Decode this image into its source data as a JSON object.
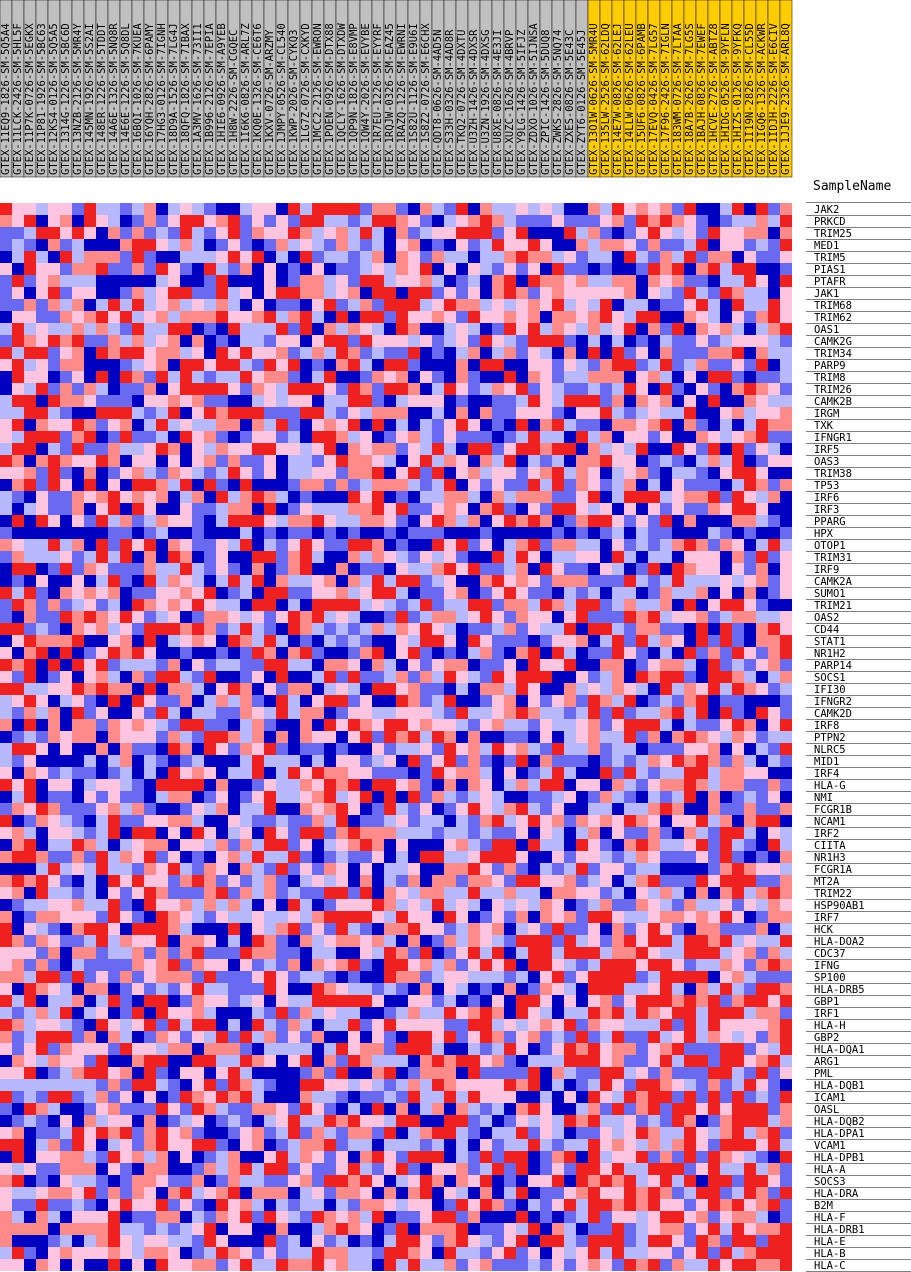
{
  "chart_data": {
    "type": "heatmap",
    "title": "",
    "xlabel": "",
    "ylabel": "",
    "header_label": "SampleName",
    "colors": {
      "group_a_header": "#c0c0c0",
      "group_b_header": "#ffcc00",
      "scale": [
        "#0000c0",
        "#6a6af0",
        "#b8b8ff",
        "#ffc4e0",
        "#ff8a8a",
        "#ee2020"
      ]
    },
    "samples": [
      "GTEX-11EQ9-1826-SM-5Q5A4",
      "GTEX-11LCK-2426-SM-5HL5F",
      "GTEX-11P7K-0726-SM-5EGKX",
      "GTEX-11P81-1926-SM-5BC63",
      "GTEX-12KS4-0126-SM-5Q5A5",
      "GTEX-1314G-1226-SM-5BC6D",
      "GTEX-13NZB-2126-SM-5MR4Y",
      "GTEX-145MN-1926-SM-5S2AI",
      "GTEX-148ER-1226-SM-5TDDT",
      "GTEX-14A6E-1326-SM-5NQ8R",
      "GTEX-14E6E-1226-SM-5Q8DL",
      "GTEX-16BQI-1026-SM-7KUEA",
      "GTEX-16YQH-2826-SM-6PAMY",
      "GTEX-17HG3-0126-SM-7IGNH",
      "GTEX-18D9A-1526-SM-7LG4J",
      "GTEX-18QFQ-1826-SM-7IBAX",
      "GTEX-1A3MV-1626-SM-73II1",
      "GTEX-1B996-2126-SM-7EPIA",
      "GTEX-1HIE6-0926-SM-A9YEB",
      "GTEX-1H8W-2226-SM-CGQEC",
      "GTEX-1I6K6-0826-SM-ARL7Z",
      "GTEX-1KQ0E-1326-SM-CE6T6",
      "GTEX-1KXV-0726-SM-ARZMY",
      "GTEX-1JMPY-0526-SM-CL540",
      "GTEX-1KWP-2026-SM-CYKQ3",
      "GTEX-1LG7Z-0726-SM-CXKYD",
      "GTEX-1MCC2-2126-SM-EWRON",
      "GTEX-1POEN-0926-SM-DTX88",
      "GTEX-1QCLY-1626-SM-DTXDW",
      "GTEX-1QP9N-1826-SM-E8VMP",
      "GTEX-1QW4Y-2026-SM-EVYBE",
      "GTEX-1R7EU-1226-SM-EYYRF",
      "GTEX-1RQJW-0326-SM-EAZ45",
      "GTEX-1RAZQ-1226-SM-EWRNI",
      "GTEX-1S82U-1126-SM-E9U6I",
      "GTEX-1S8Z2-0726-SM-E6CHX",
      "GTEX-QDT8-0626-SM-4AD5N",
      "GTEX-S33H-0326-SM-4AD8R",
      "GTEX-TKQ2-0726-SM-4DXTU",
      "GTEX-U3ZH-1426-SM-4DXSR",
      "GTEX-U3ZN-1926-SM-4DXSG",
      "GTEX-U8XE-0826-SM-4E3JI",
      "GTEX-XUZC-1626-SM-4BRVP",
      "GTEX-Y9LG-1426-SM-5IFJZ",
      "GTEX-ZDXO-1026-SM-5IJNSA",
      "GTEX-ZPIC-1426-SM-5DUQ8",
      "GTEX-ZWKS-2826-SM-5NQ74",
      "GTEX-ZXES-0826-SM-5E43C",
      "GTEX-ZYT6-0126-SM-5E45J",
      "GTEX-13O1W-0626-SM-5MR4U",
      "GTEX-135LW-2526-SM-62LDQ",
      "GTEX-14E7W-0826-SM-62LEJ",
      "GTEX-14LLW-0626-SM-62LEU",
      "GTEX-15UF6-0826-SM-6PAMB",
      "GTEX-17EVQ-0426-SM-7LG57",
      "GTEX-17F96-2426-SM-7IGLN",
      "GTEX-183WM-0726-SM-7LTAA",
      "GTEX-18A7B-2626-SM-7LG5S",
      "GTEX-1BAJH-0826-SM-7EWEF",
      "GTEX-1HCVE-2726-SM-ABTZ8",
      "GTEX-1HIDG-0526-SM-9YFLN",
      "GTEX-1HIZS-0126-SM-9YFKQ",
      "GTEX-1I19N-2826-SM-CL55D",
      "GTEX-1IGQ6-1326-SM-ACKWR",
      "GTEX-1IDJH-2226-SM-E6CIV",
      "GTEX-1JJE9-2326-SM-ARL8Q"
    ],
    "group_a_count": 49,
    "genes": [
      "JAK2",
      "PRKCD",
      "TRIM25",
      "MED1",
      "TRIM5",
      "PIAS1",
      "PTAFR",
      "JAK1",
      "TRIM68",
      "TRIM62",
      "OAS1",
      "CAMK2G",
      "TRIM34",
      "PARP9",
      "TRIM8",
      "TRIM26",
      "CAMK2B",
      "IRGM",
      "TXK",
      "IFNGR1",
      "IRF5",
      "OAS3",
      "TRIM38",
      "TP53",
      "IRF6",
      "IRF3",
      "PPARG",
      "HPX",
      "OTOP1",
      "TRIM31",
      "IRF9",
      "CAMK2A",
      "SUMO1",
      "TRIM21",
      "OAS2",
      "CD44",
      "STAT1",
      "NR1H2",
      "PARP14",
      "SOCS1",
      "IFI30",
      "IFNGR2",
      "CAMK2D",
      "IRF8",
      "PTPN2",
      "NLRC5",
      "MID1",
      "IRF4",
      "HLA-G",
      "NMI",
      "FCGR1B",
      "NCAM1",
      "IRF2",
      "CIITA",
      "NR1H3",
      "FCGR1A",
      "MT2A",
      "TRIM22",
      "HSP90AB1",
      "IRF7",
      "HCK",
      "HLA-DOA2",
      "CDC37",
      "IFNG",
      "SP100",
      "HLA-DRB5",
      "GBP1",
      "IRF1",
      "HLA-H",
      "GBP2",
      "HLA-DQA1",
      "ARG1",
      "PML",
      "HLA-DQB1",
      "ICAM1",
      "OASL",
      "HLA-DQB2",
      "HLA-DPA1",
      "VCAM1",
      "HLA-DPB1",
      "HLA-A",
      "SOCS3",
      "HLA-DRA",
      "B2M",
      "HLA-F",
      "HLA-DRB1",
      "HLA-E",
      "HLA-B",
      "HLA-C"
    ]
  }
}
